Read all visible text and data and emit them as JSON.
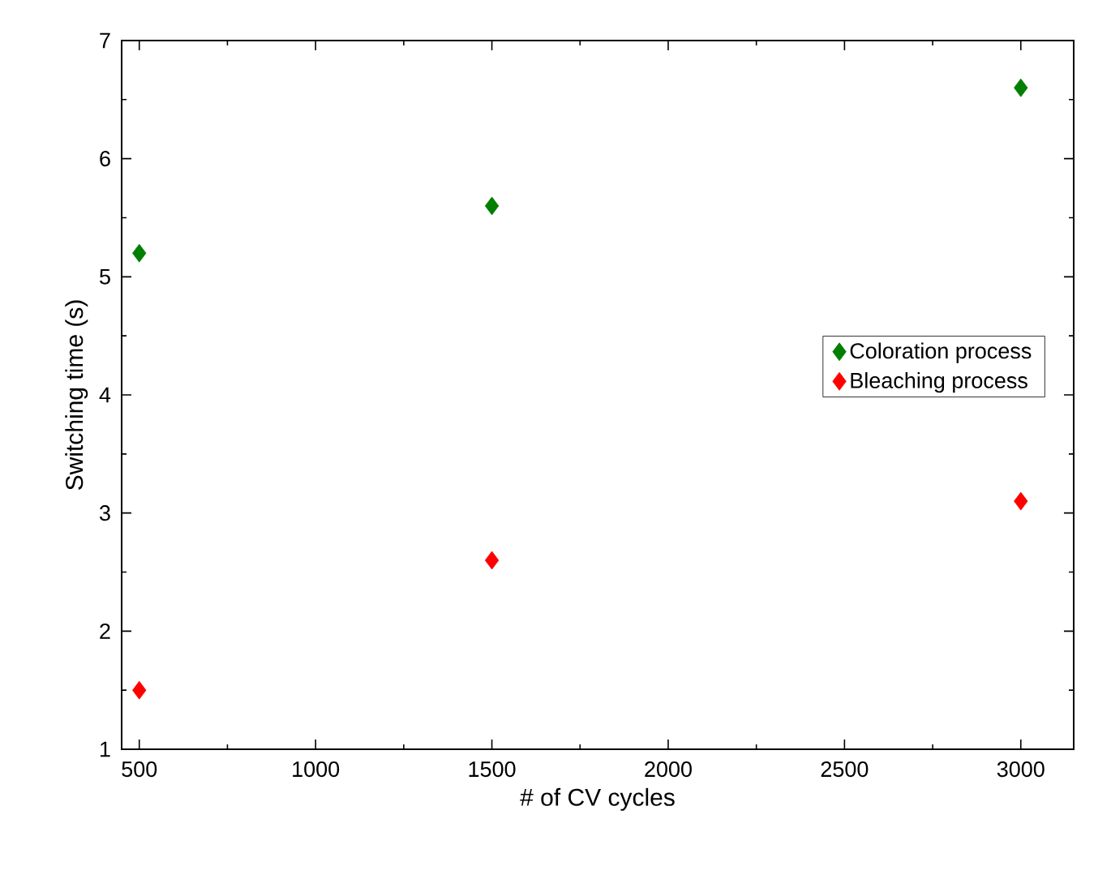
{
  "chart_data": {
    "type": "scatter",
    "xlabel": "# of CV cycles",
    "ylabel": "Switching time (s)",
    "x": [
      500,
      1500,
      3000
    ],
    "series": [
      {
        "name": "Coloration process",
        "color": "#007f00",
        "values": [
          5.2,
          5.6,
          6.6
        ]
      },
      {
        "name": "Bleaching process",
        "color": "#ff0000",
        "values": [
          1.5,
          2.6,
          3.1
        ]
      }
    ],
    "xlim": [
      450,
      3150
    ],
    "xticks": [
      500,
      1000,
      1500,
      2000,
      2500,
      3000
    ],
    "ylim": [
      1,
      7
    ],
    "yticks": [
      1,
      2,
      3,
      4,
      5,
      6,
      7
    ],
    "marker": "diamond",
    "legend": "right",
    "grid": false
  }
}
